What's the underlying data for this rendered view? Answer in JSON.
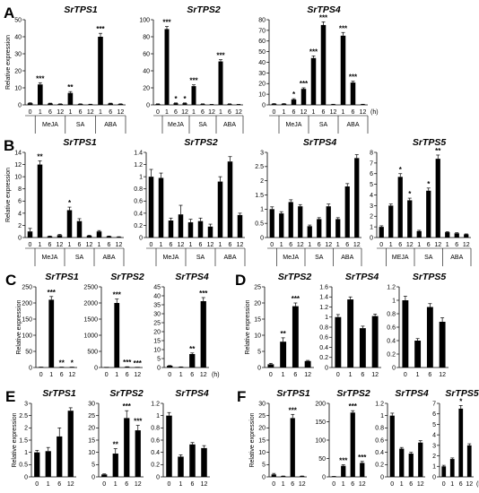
{
  "ylabel": "Relative expression",
  "unit": "(h)",
  "colors": {
    "bar": "#000000",
    "axis": "#000000"
  },
  "chart_data": [
    {
      "type": "bar",
      "panel": "A",
      "title": "SrTPS1",
      "ylim": [
        0,
        50
      ],
      "yticks": [
        0,
        10,
        20,
        30,
        40,
        50
      ],
      "categories": [
        "0",
        "1",
        "6",
        "12",
        "1",
        "6",
        "12",
        "1",
        "6",
        "12"
      ],
      "groups": [
        {
          "label": "MeJA",
          "start": 1,
          "end": 3
        },
        {
          "label": "SA",
          "start": 4,
          "end": 6
        },
        {
          "label": "ABA",
          "start": 7,
          "end": 9
        }
      ],
      "values": [
        1,
        12,
        0.8,
        0.5,
        7,
        0.5,
        0.3,
        40,
        0.8,
        0.5
      ],
      "errors": [
        0.2,
        1,
        0.2,
        0.1,
        0.8,
        0.1,
        0.1,
        2,
        0.2,
        0.1
      ],
      "sig": [
        "",
        "***",
        "",
        "",
        "**",
        "",
        "",
        "***",
        "",
        ""
      ]
    },
    {
      "type": "bar",
      "panel": "",
      "title": "SrTPS2",
      "ylim": [
        0,
        100
      ],
      "yticks": [
        0,
        20,
        40,
        60,
        80,
        100
      ],
      "categories": [
        "0",
        "1",
        "6",
        "12",
        "1",
        "6",
        "12",
        "1",
        "6",
        "12"
      ],
      "groups": [
        {
          "label": "MeJA",
          "start": 1,
          "end": 3
        },
        {
          "label": "SA",
          "start": 4,
          "end": 6
        },
        {
          "label": "ABA",
          "start": 7,
          "end": 9
        }
      ],
      "values": [
        1,
        89,
        2,
        2,
        22,
        1,
        0.5,
        51,
        1,
        0.5
      ],
      "errors": [
        0.2,
        3,
        0.3,
        0.3,
        1.5,
        0.2,
        0.1,
        2,
        0.2,
        0.1
      ],
      "sig": [
        "",
        "***",
        "*",
        "*",
        "***",
        "",
        "",
        "***",
        "",
        ""
      ]
    },
    {
      "type": "bar",
      "panel": "",
      "title": "SrTPS4",
      "ylim": [
        0,
        80
      ],
      "yticks": [
        0,
        10,
        20,
        30,
        40,
        50,
        60,
        70,
        80
      ],
      "categories": [
        "0",
        "1",
        "6",
        "12",
        "1",
        "6",
        "12",
        "1",
        "6",
        "12"
      ],
      "groups": [
        {
          "label": "MeJA",
          "start": 1,
          "end": 3
        },
        {
          "label": "SA",
          "start": 4,
          "end": 6
        },
        {
          "label": "ABA",
          "start": 7,
          "end": 9
        }
      ],
      "values": [
        1,
        1,
        5,
        15,
        44,
        75,
        0.5,
        65,
        21,
        0.5
      ],
      "errors": [
        0.2,
        0.2,
        0.8,
        1,
        2,
        3,
        0.1,
        3,
        1.2,
        0.1
      ],
      "sig": [
        "",
        "",
        "*",
        "***",
        "***",
        "***",
        "",
        "***",
        "***",
        ""
      ]
    },
    {
      "type": "bar",
      "panel": "B",
      "title": "SrTPS1",
      "ylim": [
        0,
        14
      ],
      "yticks": [
        0,
        2,
        4,
        6,
        8,
        10,
        12,
        14
      ],
      "categories": [
        "0",
        "1",
        "6",
        "12",
        "1",
        "6",
        "12",
        "1",
        "6",
        "12"
      ],
      "groups": [
        {
          "label": "MeJA",
          "start": 1,
          "end": 3
        },
        {
          "label": "SA",
          "start": 4,
          "end": 6
        },
        {
          "label": "ABA",
          "start": 7,
          "end": 9
        }
      ],
      "values": [
        1,
        12,
        0.2,
        0.4,
        4.5,
        2.7,
        0.3,
        1,
        0.2,
        0.1
      ],
      "errors": [
        0.5,
        0.6,
        0.05,
        0.1,
        0.5,
        0.4,
        0.05,
        0.15,
        0.05,
        0.03
      ],
      "sig": [
        "",
        "**",
        "",
        "",
        "*",
        "",
        "",
        "",
        "",
        ""
      ]
    },
    {
      "type": "bar",
      "panel": "",
      "title": "SrTPS2",
      "ylim": [
        0,
        1.4
      ],
      "yticks": [
        0,
        0.2,
        0.4,
        0.6,
        0.8,
        1.0,
        1.2,
        1.4
      ],
      "categories": [
        "0",
        "1",
        "6",
        "12",
        "1",
        "6",
        "12",
        "1",
        "6",
        "12"
      ],
      "groups": [
        {
          "label": "MeJA",
          "start": 1,
          "end": 3
        },
        {
          "label": "SA",
          "start": 4,
          "end": 6
        },
        {
          "label": "ABA",
          "start": 7,
          "end": 9
        }
      ],
      "values": [
        1.0,
        0.98,
        0.28,
        0.38,
        0.25,
        0.27,
        0.18,
        0.92,
        1.25,
        0.37
      ],
      "errors": [
        0.12,
        0.08,
        0.04,
        0.15,
        0.05,
        0.05,
        0.04,
        0.08,
        0.08,
        0.03
      ],
      "sig": [
        "",
        "",
        "",
        "",
        "",
        "",
        "",
        "",
        "",
        ""
      ]
    },
    {
      "type": "bar",
      "panel": "",
      "title": "SrTPS4",
      "ylim": [
        0,
        3
      ],
      "yticks": [
        0,
        0.5,
        1,
        1.5,
        2,
        2.5,
        3
      ],
      "categories": [
        "0",
        "1",
        "6",
        "12",
        "1",
        "6",
        "12",
        "1",
        "6",
        "12"
      ],
      "groups": [
        {
          "label": "MeJA",
          "start": 1,
          "end": 3
        },
        {
          "label": "SA",
          "start": 4,
          "end": 6
        },
        {
          "label": "ABA",
          "start": 7,
          "end": 9
        }
      ],
      "values": [
        1,
        0.85,
        1.25,
        1.1,
        0.4,
        0.65,
        1.1,
        0.65,
        1.8,
        2.8
      ],
      "errors": [
        0.08,
        0.06,
        0.08,
        0.06,
        0.04,
        0.05,
        0.08,
        0.05,
        0.1,
        0.12
      ],
      "sig": [
        "",
        "",
        "",
        "",
        "",
        "",
        "",
        "",
        "",
        ""
      ]
    },
    {
      "type": "bar",
      "panel": "",
      "title": "SrTPS5",
      "ylim": [
        0,
        8
      ],
      "yticks": [
        0,
        1,
        2,
        3,
        4,
        5,
        6,
        7,
        8
      ],
      "categories": [
        "0",
        "1",
        "6",
        "12",
        "1",
        "6",
        "12",
        "1",
        "6",
        "12"
      ],
      "groups": [
        {
          "label": "MEJA",
          "start": 1,
          "end": 3
        },
        {
          "label": "SA",
          "start": 4,
          "end": 6
        },
        {
          "label": "ABA",
          "start": 7,
          "end": 9
        }
      ],
      "values": [
        1,
        3,
        5.7,
        3.5,
        0.6,
        4.4,
        7.4,
        0.5,
        0.4,
        0.3
      ],
      "errors": [
        0.1,
        0.15,
        0.3,
        0.2,
        0.08,
        0.25,
        0.35,
        0.05,
        0.05,
        0.04
      ],
      "sig": [
        "",
        "",
        "*",
        "*",
        "",
        "*",
        "**",
        "",
        "",
        ""
      ]
    },
    {
      "type": "bar",
      "panel": "C",
      "title": "SrTPS1",
      "ylim": [
        0,
        250
      ],
      "yticks": [
        0,
        50,
        100,
        150,
        200,
        250
      ],
      "categories": [
        "0",
        "1",
        "6",
        "12"
      ],
      "values": [
        1,
        210,
        1,
        1
      ],
      "errors": [
        0.2,
        10,
        0.2,
        0.2
      ],
      "sig": [
        "",
        "***",
        "**",
        "*"
      ]
    },
    {
      "type": "bar",
      "panel": "",
      "title": "SrTPS2",
      "ylim": [
        0,
        2500
      ],
      "yticks": [
        0,
        500,
        1000,
        1500,
        2000,
        2500
      ],
      "categories": [
        "0",
        "1",
        "6",
        "12"
      ],
      "values": [
        1,
        2000,
        20,
        5
      ],
      "errors": [
        0.2,
        120,
        3,
        1
      ],
      "sig": [
        "",
        "***",
        "***",
        "***"
      ]
    },
    {
      "type": "bar",
      "panel": "",
      "title": "SrTPS4",
      "ylim": [
        0,
        45
      ],
      "yticks": [
        0,
        5,
        10,
        15,
        20,
        25,
        30,
        35,
        40,
        45
      ],
      "categories": [
        "0",
        "1",
        "6",
        "12"
      ],
      "values": [
        1,
        0.3,
        7.5,
        37
      ],
      "errors": [
        0.1,
        0.05,
        0.6,
        2
      ],
      "sig": [
        "",
        "",
        "**",
        "***"
      ]
    },
    {
      "type": "bar",
      "panel": "D",
      "title": "SrTPS2",
      "ylim": [
        0,
        25
      ],
      "yticks": [
        0,
        5,
        10,
        15,
        20,
        25
      ],
      "categories": [
        "0",
        "1",
        "6",
        "12"
      ],
      "values": [
        1,
        8,
        19,
        2
      ],
      "errors": [
        0.3,
        1.2,
        1,
        0.2
      ],
      "sig": [
        "",
        "**",
        "***",
        ""
      ]
    },
    {
      "type": "bar",
      "panel": "",
      "title": "SrTPS4",
      "ylim": [
        0,
        1.6
      ],
      "yticks": [
        0,
        0.2,
        0.4,
        0.6,
        0.8,
        1.0,
        1.2,
        1.4,
        1.6
      ],
      "categories": [
        "0",
        "1",
        "6",
        "12"
      ],
      "values": [
        1.0,
        1.35,
        0.78,
        1.02
      ],
      "errors": [
        0.05,
        0.05,
        0.04,
        0.04
      ],
      "sig": [
        "",
        "",
        "",
        ""
      ]
    },
    {
      "type": "bar",
      "panel": "",
      "title": "SrTPS5",
      "ylim": [
        0,
        1.2
      ],
      "yticks": [
        0,
        0.2,
        0.4,
        0.6,
        0.8,
        1,
        1.2
      ],
      "categories": [
        "0",
        "1",
        "6",
        "12"
      ],
      "values": [
        1.0,
        0.4,
        0.9,
        0.68
      ],
      "errors": [
        0.06,
        0.03,
        0.05,
        0.06
      ],
      "sig": [
        "",
        "",
        "",
        ""
      ]
    },
    {
      "type": "bar",
      "panel": "E",
      "title": "SrTPS1",
      "ylim": [
        0,
        3
      ],
      "yticks": [
        0,
        0.5,
        1,
        1.5,
        2,
        2.5,
        3
      ],
      "categories": [
        "0",
        "1",
        "6",
        "12"
      ],
      "values": [
        1.0,
        1.05,
        1.65,
        2.7
      ],
      "errors": [
        0.08,
        0.15,
        0.35,
        0.12
      ],
      "sig": [
        "",
        "",
        "",
        ""
      ]
    },
    {
      "type": "bar",
      "panel": "",
      "title": "SrTPS2",
      "ylim": [
        0,
        30
      ],
      "yticks": [
        0,
        5,
        10,
        15,
        20,
        25,
        30
      ],
      "categories": [
        "0",
        "1",
        "6",
        "12"
      ],
      "values": [
        1,
        9.5,
        24,
        19
      ],
      "errors": [
        0.2,
        2,
        3,
        2
      ],
      "sig": [
        "",
        "**",
        "***",
        "***"
      ]
    },
    {
      "type": "bar",
      "panel": "",
      "title": "SrTPS4",
      "ylim": [
        0,
        1.2
      ],
      "yticks": [
        0,
        0.2,
        0.4,
        0.6,
        0.8,
        1.0,
        1.2
      ],
      "categories": [
        "0",
        "1",
        "6",
        "12"
      ],
      "values": [
        1.0,
        0.33,
        0.53,
        0.47
      ],
      "errors": [
        0.05,
        0.03,
        0.03,
        0.04
      ],
      "sig": [
        "",
        "",
        "",
        ""
      ]
    },
    {
      "type": "bar",
      "panel": "F",
      "title": "SrTPS1",
      "ylim": [
        0,
        30
      ],
      "yticks": [
        0,
        5,
        10,
        15,
        20,
        25,
        30
      ],
      "categories": [
        "0",
        "1",
        "6",
        "12"
      ],
      "values": [
        1,
        0.3,
        24,
        0.3
      ],
      "errors": [
        0.4,
        0.05,
        1.5,
        0.05
      ],
      "sig": [
        "",
        "",
        "***",
        ""
      ]
    },
    {
      "type": "bar",
      "panel": "",
      "title": "SrTPS2",
      "ylim": [
        0,
        200
      ],
      "yticks": [
        0,
        50,
        100,
        150,
        200
      ],
      "categories": [
        "0",
        "1",
        "6",
        "12"
      ],
      "values": [
        1,
        30,
        175,
        38
      ],
      "errors": [
        0.2,
        3,
        5,
        4
      ],
      "sig": [
        "",
        "***",
        "***",
        "***"
      ]
    },
    {
      "type": "bar",
      "panel": "",
      "title": "SrTPS4",
      "ylim": [
        0,
        1.2
      ],
      "yticks": [
        0,
        0.2,
        0.4,
        0.6,
        0.8,
        1.0,
        1.2
      ],
      "categories": [
        "0",
        "1",
        "6",
        "12"
      ],
      "values": [
        1.0,
        0.46,
        0.38,
        0.56
      ],
      "errors": [
        0.04,
        0.02,
        0.02,
        0.03
      ],
      "sig": [
        "",
        "",
        "",
        ""
      ]
    },
    {
      "type": "bar",
      "panel": "",
      "title": "SrTPS5",
      "ylim": [
        0,
        7
      ],
      "yticks": [
        0,
        1,
        2,
        3,
        4,
        5,
        6,
        7
      ],
      "categories": [
        "0",
        "1",
        "6",
        "12"
      ],
      "values": [
        1,
        1.7,
        6.5,
        3
      ],
      "errors": [
        0.1,
        0.1,
        0.3,
        0.15
      ],
      "sig": [
        "",
        "",
        "*",
        ""
      ]
    }
  ]
}
